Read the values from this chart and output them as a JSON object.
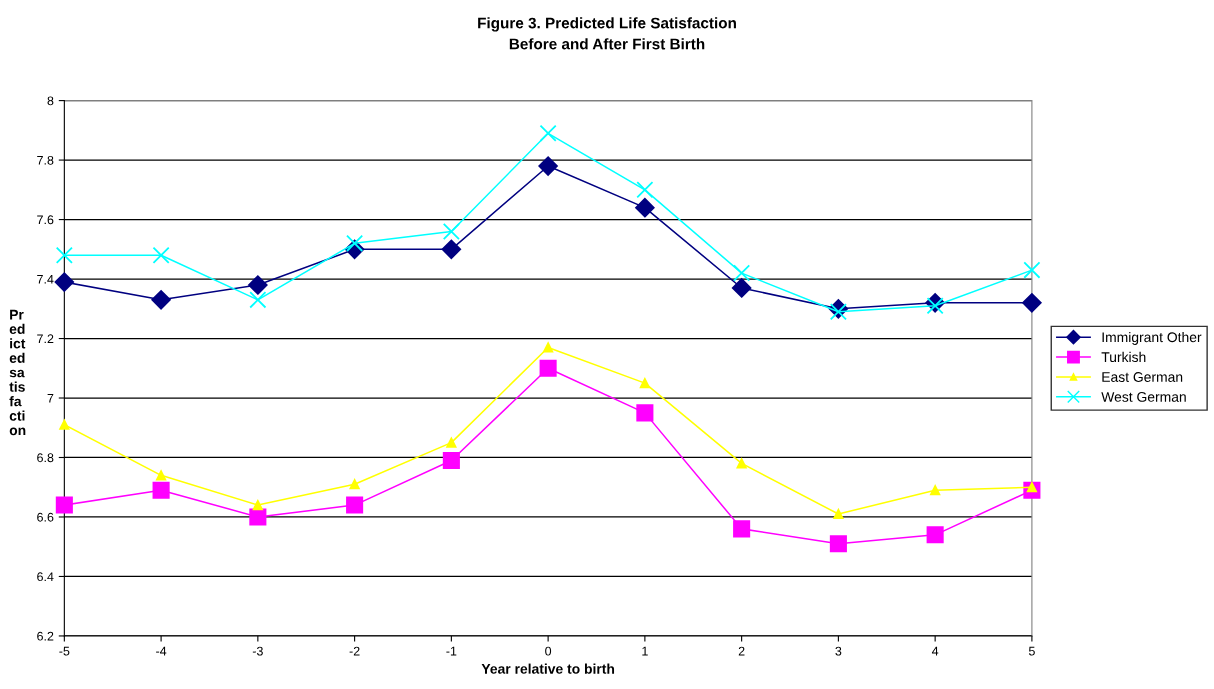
{
  "chart_data": {
    "type": "line",
    "title": "Figure 3. Predicted Life Satisfaction\nBefore and After First Birth",
    "xlabel": "Year relative to birth",
    "ylabel": "Pr\ned\nict\ned\nsa\ntis\nfa\ncti\non",
    "x": [
      -5,
      -4,
      -3,
      -2,
      -1,
      0,
      1,
      2,
      3,
      4,
      5
    ],
    "xlim": [
      -5,
      5
    ],
    "xticks": [
      -5,
      -4,
      -3,
      -2,
      -1,
      0,
      1,
      2,
      3,
      4,
      5
    ],
    "ylim": [
      6.2,
      8
    ],
    "yticks": [
      6.2,
      6.4,
      6.6,
      6.8,
      7,
      7.2,
      7.4,
      7.6,
      7.8,
      8
    ],
    "grid": "y",
    "legend": "right",
    "series": [
      {
        "name": "Immigrant Other",
        "color": "#000080",
        "marker": "diamond",
        "values": [
          7.39,
          7.33,
          7.38,
          7.5,
          7.5,
          7.78,
          7.64,
          7.37,
          7.3,
          7.32,
          7.32
        ]
      },
      {
        "name": "Turkish",
        "color": "#ff00ff",
        "marker": "square",
        "values": [
          6.64,
          6.69,
          6.6,
          6.64,
          6.79,
          7.1,
          6.95,
          6.56,
          6.51,
          6.54,
          6.69
        ]
      },
      {
        "name": "East German",
        "color": "#ffff00",
        "marker": "triangle",
        "values": [
          6.91,
          6.74,
          6.64,
          6.71,
          6.85,
          7.17,
          7.05,
          6.78,
          6.61,
          6.69,
          6.7
        ]
      },
      {
        "name": "West German",
        "color": "#00ffff",
        "marker": "cross",
        "values": [
          7.48,
          7.48,
          7.33,
          7.52,
          7.56,
          7.89,
          7.7,
          7.42,
          7.29,
          7.31,
          7.43
        ]
      }
    ]
  }
}
